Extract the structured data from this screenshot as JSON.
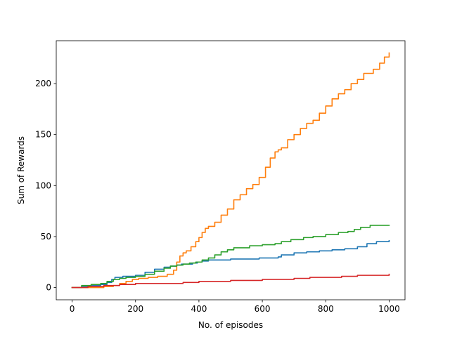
{
  "chart_data": {
    "type": "line",
    "title": "",
    "xlabel": "No. of episodes",
    "ylabel": "Sum of Rewards",
    "xlim": [
      -50,
      1050
    ],
    "ylim": [
      -12,
      242
    ],
    "xticks": [
      0,
      200,
      400,
      600,
      800,
      1000
    ],
    "yticks": [
      0,
      50,
      100,
      150,
      200
    ],
    "grid": false,
    "legend": "none",
    "series": [
      {
        "color": "#1f77b4",
        "x": [
          0,
          30,
          60,
          90,
          110,
          125,
          135,
          160,
          175,
          200,
          230,
          260,
          290,
          310,
          330,
          345,
          360,
          380,
          395,
          410,
          430,
          480,
          500,
          560,
          590,
          610,
          650,
          660,
          700,
          740,
          780,
          820,
          860,
          880,
          900,
          930,
          960,
          1000
        ],
        "y": [
          0,
          1,
          2,
          3,
          5,
          8,
          10,
          11,
          11,
          12,
          15,
          18,
          20,
          21,
          22,
          23,
          23,
          24,
          25,
          26,
          27,
          27,
          28,
          28,
          29,
          29,
          30,
          32,
          34,
          35,
          36,
          37,
          38,
          38,
          40,
          43,
          45,
          46
        ]
      },
      {
        "color": "#ff7f0e",
        "x": [
          0,
          100,
          130,
          150,
          170,
          190,
          210,
          240,
          270,
          300,
          320,
          330,
          340,
          350,
          360,
          375,
          390,
          400,
          410,
          420,
          430,
          450,
          470,
          490,
          510,
          530,
          550,
          570,
          590,
          610,
          625,
          640,
          650,
          660,
          680,
          700,
          720,
          740,
          760,
          780,
          800,
          820,
          840,
          860,
          880,
          900,
          920,
          950,
          970,
          985,
          1000
        ],
        "y": [
          0,
          1,
          2,
          4,
          6,
          8,
          9,
          10,
          11,
          13,
          17,
          25,
          31,
          34,
          36,
          40,
          45,
          49,
          54,
          58,
          60,
          64,
          71,
          77,
          86,
          91,
          97,
          101,
          108,
          118,
          127,
          133,
          135,
          137,
          145,
          150,
          156,
          161,
          164,
          171,
          178,
          185,
          190,
          194,
          200,
          204,
          210,
          214,
          220,
          226,
          230
        ]
      },
      {
        "color": "#2ca02c",
        "x": [
          0,
          30,
          60,
          90,
          110,
          130,
          150,
          170,
          200,
          230,
          260,
          290,
          310,
          330,
          350,
          370,
          390,
          410,
          430,
          450,
          470,
          490,
          510,
          560,
          600,
          640,
          660,
          690,
          730,
          760,
          800,
          840,
          870,
          890,
          910,
          940,
          1000
        ],
        "y": [
          0,
          2,
          3,
          4,
          6,
          8,
          9,
          10,
          11,
          13,
          16,
          19,
          21,
          22,
          23,
          24,
          25,
          27,
          29,
          32,
          35,
          37,
          39,
          41,
          42,
          43,
          45,
          47,
          49,
          50,
          52,
          54,
          55,
          57,
          59,
          61,
          61
        ]
      },
      {
        "color": "#d62728",
        "x": [
          0,
          50,
          100,
          150,
          200,
          250,
          300,
          350,
          400,
          450,
          500,
          550,
          600,
          650,
          700,
          750,
          800,
          850,
          900,
          950,
          1000
        ],
        "y": [
          0,
          1,
          2,
          3,
          4,
          4,
          4,
          5,
          6,
          6,
          7,
          7,
          8,
          8,
          9,
          10,
          10,
          11,
          12,
          12,
          13
        ]
      }
    ]
  }
}
